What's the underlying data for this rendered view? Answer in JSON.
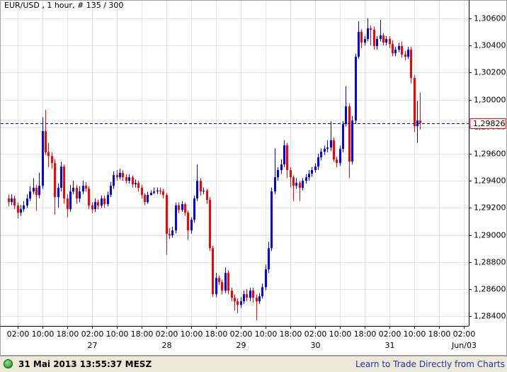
{
  "chart_data": {
    "type": "candlestick",
    "title": "EUR/USD , 1 hour, # 135 / 300",
    "colors": {
      "up": "#0000ff",
      "down": "#ff0000"
    },
    "grid": true,
    "ylim": [
      1.28327,
      1.30663
    ],
    "yticks": [
      {
        "value": 1.284,
        "label": "1,28400"
      },
      {
        "value": 1.286,
        "label": "1,28600"
      },
      {
        "value": 1.288,
        "label": "1,28800"
      },
      {
        "value": 1.29,
        "label": "1,29000"
      },
      {
        "value": 1.292,
        "label": "1,29200"
      },
      {
        "value": 1.294,
        "label": "1,29400"
      },
      {
        "value": 1.296,
        "label": "1,29600"
      },
      {
        "value": 1.298,
        "label": "1,29800"
      },
      {
        "value": 1.3,
        "label": "1,30000"
      },
      {
        "value": 1.302,
        "label": "1,30200"
      },
      {
        "value": 1.304,
        "label": "1,30400"
      },
      {
        "value": 1.306,
        "label": "1,30600"
      }
    ],
    "xticks": [
      "02:00",
      "10:00",
      "18:00",
      "02:00",
      "10:00",
      "18:00",
      "02:00",
      "10:00",
      "18:00",
      "02:00",
      "10:00",
      "18:00",
      "02:00",
      "10:00",
      "18:00",
      "02:00",
      "10:00",
      "18:00",
      "02:00"
    ],
    "day_labels": [
      "27",
      "28",
      "29",
      "30",
      "31",
      "Jun/03"
    ],
    "last_price": {
      "value": 1.29826,
      "label": "1,29826",
      "color": "#000080"
    },
    "candles": [
      [
        1.29269,
        1.293,
        1.2921,
        1.29243
      ],
      [
        1.29243,
        1.293,
        1.2922,
        1.29269
      ],
      [
        1.29269,
        1.2929,
        1.2919,
        1.29217
      ],
      [
        1.29217,
        1.2924,
        1.2912,
        1.29164
      ],
      [
        1.29164,
        1.2922,
        1.2914,
        1.2919
      ],
      [
        1.2919,
        1.2925,
        1.2917,
        1.29217
      ],
      [
        1.29217,
        1.293,
        1.292,
        1.29269
      ],
      [
        1.29269,
        1.2936,
        1.2925,
        1.29321
      ],
      [
        1.29321,
        1.2942,
        1.293,
        1.29348
      ],
      [
        1.29348,
        1.2937,
        1.2918,
        1.29295
      ],
      [
        1.29295,
        1.2946,
        1.2927,
        1.29363
      ],
      [
        1.29363,
        1.2987,
        1.2934,
        1.29767
      ],
      [
        1.29767,
        1.29924,
        1.2959,
        1.2961
      ],
      [
        1.2961,
        1.2968,
        1.295,
        1.29583
      ],
      [
        1.29583,
        1.2961,
        1.2949,
        1.29531
      ],
      [
        1.29531,
        1.2956,
        1.2915,
        1.2928
      ],
      [
        1.2928,
        1.2938,
        1.292,
        1.29348
      ],
      [
        1.29348,
        1.2954,
        1.2932,
        1.29505
      ],
      [
        1.29505,
        1.2952,
        1.2923,
        1.29269
      ],
      [
        1.29269,
        1.293,
        1.2913,
        1.2919
      ],
      [
        1.2919,
        1.2937,
        1.2917,
        1.29321
      ],
      [
        1.29321,
        1.294,
        1.293,
        1.29348
      ],
      [
        1.29348,
        1.2937,
        1.2923,
        1.29269
      ],
      [
        1.29269,
        1.2936,
        1.2924,
        1.29321
      ],
      [
        1.29321,
        1.294,
        1.293,
        1.29363
      ],
      [
        1.29363,
        1.2939,
        1.2932,
        1.29342
      ],
      [
        1.29342,
        1.2936,
        1.2919,
        1.29217
      ],
      [
        1.29217,
        1.2924,
        1.2916,
        1.2919
      ],
      [
        1.2919,
        1.2927,
        1.2917,
        1.29243
      ],
      [
        1.29243,
        1.2926,
        1.2919,
        1.29217
      ],
      [
        1.29217,
        1.2929,
        1.292,
        1.29269
      ],
      [
        1.29269,
        1.2929,
        1.292,
        1.29227
      ],
      [
        1.29227,
        1.2932,
        1.2921,
        1.29295
      ],
      [
        1.29295,
        1.2939,
        1.2928,
        1.29363
      ],
      [
        1.29363,
        1.2947,
        1.2934,
        1.29442
      ],
      [
        1.29442,
        1.2948,
        1.294,
        1.29426
      ],
      [
        1.29426,
        1.2949,
        1.2941,
        1.29458
      ],
      [
        1.29458,
        1.2948,
        1.294,
        1.29426
      ],
      [
        1.29426,
        1.2945,
        1.2938,
        1.294
      ],
      [
        1.294,
        1.2945,
        1.2938,
        1.29426
      ],
      [
        1.29426,
        1.2944,
        1.2935,
        1.29374
      ],
      [
        1.29374,
        1.2941,
        1.2935,
        1.29384
      ],
      [
        1.29384,
        1.294,
        1.2932,
        1.29348
      ],
      [
        1.29348,
        1.2937,
        1.2927,
        1.29295
      ],
      [
        1.29295,
        1.2931,
        1.2922,
        1.29243
      ],
      [
        1.29243,
        1.2932,
        1.2923,
        1.29295
      ],
      [
        1.29295,
        1.2933,
        1.2929,
        1.29311
      ],
      [
        1.29311,
        1.2935,
        1.293,
        1.29321
      ],
      [
        1.29321,
        1.2935,
        1.293,
        1.29327
      ],
      [
        1.29327,
        1.2935,
        1.293,
        1.29321
      ],
      [
        1.29321,
        1.2934,
        1.2927,
        1.29295
      ],
      [
        1.29295,
        1.2931,
        1.2885,
        1.29007
      ],
      [
        1.29007,
        1.2905,
        1.2897,
        1.28997
      ],
      [
        1.28997,
        1.2906,
        1.2898,
        1.29033
      ],
      [
        1.29033,
        1.2924,
        1.2901,
        1.29217
      ],
      [
        1.29217,
        1.2924,
        1.2916,
        1.29185
      ],
      [
        1.29185,
        1.2925,
        1.2917,
        1.29227
      ],
      [
        1.29227,
        1.2924,
        1.2914,
        1.29164
      ],
      [
        1.29164,
        1.2918,
        1.2896,
        1.29033
      ],
      [
        1.29033,
        1.2913,
        1.2901,
        1.29112
      ],
      [
        1.29112,
        1.2929,
        1.2909,
        1.29269
      ],
      [
        1.29269,
        1.2952,
        1.2925,
        1.294
      ],
      [
        1.294,
        1.2942,
        1.2929,
        1.29321
      ],
      [
        1.29321,
        1.2935,
        1.293,
        1.29327
      ],
      [
        1.29327,
        1.2934,
        1.2923,
        1.29259
      ],
      [
        1.29259,
        1.2928,
        1.2888,
        1.28902
      ],
      [
        1.28902,
        1.2892,
        1.2854,
        1.28562
      ],
      [
        1.28562,
        1.2872,
        1.2854,
        1.28682
      ],
      [
        1.28682,
        1.287,
        1.2863,
        1.28651
      ],
      [
        1.28651,
        1.2867,
        1.2856,
        1.28588
      ],
      [
        1.28588,
        1.2876,
        1.2857,
        1.28719
      ],
      [
        1.28719,
        1.2874,
        1.2856,
        1.28588
      ],
      [
        1.28588,
        1.2861,
        1.2851,
        1.28535
      ],
      [
        1.28535,
        1.2856,
        1.2844,
        1.28509
      ],
      [
        1.28509,
        1.2853,
        1.2842,
        1.28483
      ],
      [
        1.28483,
        1.2854,
        1.2846,
        1.28509
      ],
      [
        1.28509,
        1.2859,
        1.2849,
        1.28562
      ],
      [
        1.28562,
        1.286,
        1.2851,
        1.28535
      ],
      [
        1.28535,
        1.2861,
        1.2851,
        1.28588
      ],
      [
        1.28588,
        1.2861,
        1.285,
        1.28535
      ],
      [
        1.28535,
        1.2856,
        1.2837,
        1.28509
      ],
      [
        1.28509,
        1.2857,
        1.2849,
        1.28546
      ],
      [
        1.28546,
        1.2864,
        1.2853,
        1.28614
      ],
      [
        1.28614,
        1.2878,
        1.2859,
        1.28745
      ],
      [
        1.28745,
        1.2895,
        1.2872,
        1.28902
      ],
      [
        1.28902,
        1.2935,
        1.2888,
        1.29321
      ],
      [
        1.29321,
        1.2964,
        1.293,
        1.29426
      ],
      [
        1.29426,
        1.295,
        1.294,
        1.29479
      ],
      [
        1.29479,
        1.2956,
        1.2945,
        1.29521
      ],
      [
        1.29521,
        1.297,
        1.295,
        1.29662
      ],
      [
        1.29662,
        1.2968,
        1.2942,
        1.29479
      ],
      [
        1.29479,
        1.295,
        1.2935,
        1.29426
      ],
      [
        1.29426,
        1.2944,
        1.2925,
        1.29363
      ],
      [
        1.29363,
        1.2942,
        1.2934,
        1.29384
      ],
      [
        1.29384,
        1.294,
        1.2925,
        1.29348
      ],
      [
        1.29348,
        1.2942,
        1.2933,
        1.294
      ],
      [
        1.294,
        1.2945,
        1.2938,
        1.29426
      ],
      [
        1.29426,
        1.2948,
        1.294,
        1.29452
      ],
      [
        1.29452,
        1.295,
        1.2943,
        1.29479
      ],
      [
        1.29479,
        1.2953,
        1.2946,
        1.29505
      ],
      [
        1.29505,
        1.296,
        1.2948,
        1.29573
      ],
      [
        1.29573,
        1.2964,
        1.2955,
        1.29615
      ],
      [
        1.29615,
        1.2966,
        1.2959,
        1.29636
      ],
      [
        1.29636,
        1.297,
        1.2961,
        1.29646
      ],
      [
        1.29646,
        1.2984,
        1.2962,
        1.29699
      ],
      [
        1.29699,
        1.2972,
        1.2954,
        1.29557
      ],
      [
        1.29557,
        1.2958,
        1.295,
        1.29531
      ],
      [
        1.29531,
        1.2966,
        1.2951,
        1.29636
      ],
      [
        1.29636,
        1.2984,
        1.2961,
        1.29819
      ],
      [
        1.29819,
        1.301,
        1.298,
        1.2995
      ],
      [
        1.2995,
        1.2997,
        1.2942,
        1.29542
      ],
      [
        1.29542,
        1.2988,
        1.2952,
        1.29845
      ],
      [
        1.29845,
        1.3034,
        1.2982,
        1.30317
      ],
      [
        1.30317,
        1.3058,
        1.303,
        1.305
      ],
      [
        1.305,
        1.3052,
        1.3038,
        1.30422
      ],
      [
        1.30422,
        1.3047,
        1.304,
        1.30448
      ],
      [
        1.30448,
        1.306,
        1.3043,
        1.30527
      ],
      [
        1.30527,
        1.3055,
        1.304,
        1.30517
      ],
      [
        1.30517,
        1.3054,
        1.3037,
        1.30396
      ],
      [
        1.30396,
        1.3047,
        1.3037,
        1.30448
      ],
      [
        1.30448,
        1.3059,
        1.3043,
        1.30474
      ],
      [
        1.30474,
        1.3049,
        1.304,
        1.30422
      ],
      [
        1.30422,
        1.3047,
        1.304,
        1.30448
      ],
      [
        1.30448,
        1.3047,
        1.3038,
        1.30411
      ],
      [
        1.30411,
        1.3044,
        1.3032,
        1.30343
      ],
      [
        1.30343,
        1.3039,
        1.3032,
        1.30369
      ],
      [
        1.30369,
        1.3042,
        1.3035,
        1.30396
      ],
      [
        1.30396,
        1.3043,
        1.3031,
        1.30333
      ],
      [
        1.30333,
        1.3036,
        1.3029,
        1.30317
      ],
      [
        1.30317,
        1.3039,
        1.303,
        1.30369
      ],
      [
        1.30369,
        1.3039,
        1.3012,
        1.3016
      ],
      [
        1.3016,
        1.3018,
        1.2976,
        1.29804
      ],
      [
        1.29804,
        1.2999,
        1.2968,
        1.29845
      ],
      [
        1.29845,
        1.3005,
        1.2978,
        1.29826
      ]
    ]
  },
  "footer": {
    "timestamp": "31 Mai 2013 13:55:37 MESZ",
    "link": "Learn to Trade Directly from Charts"
  }
}
